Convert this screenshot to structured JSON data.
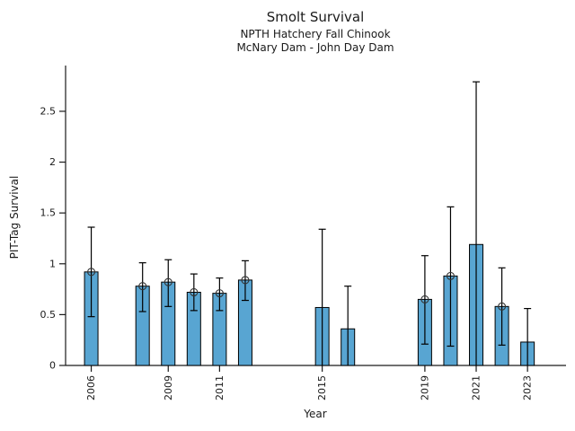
{
  "chart_data": {
    "type": "bar",
    "title": "Smolt Survival",
    "subtitle": [
      "NPTH Hatchery Fall Chinook",
      "McNary Dam - John Day Dam"
    ],
    "xlabel": "Year",
    "ylabel": "PIT-Tag Survival",
    "x": [
      2006,
      2008,
      2009,
      2010,
      2011,
      2012,
      2015,
      2016,
      2019,
      2020,
      2021,
      2022,
      2023
    ],
    "values": [
      0.92,
      0.78,
      0.82,
      0.72,
      0.71,
      0.84,
      0.57,
      0.36,
      0.65,
      0.88,
      1.19,
      0.58,
      0.23
    ],
    "error_low": [
      0.48,
      0.53,
      0.58,
      0.54,
      0.54,
      0.64,
      0,
      0,
      0.21,
      0.19,
      0,
      0.2,
      0
    ],
    "error_high": [
      1.36,
      1.01,
      1.04,
      0.9,
      0.86,
      1.03,
      1.34,
      0.78,
      1.08,
      1.56,
      2.79,
      0.96,
      0.56
    ],
    "point_marker": [
      true,
      true,
      true,
      true,
      true,
      true,
      false,
      false,
      true,
      true,
      false,
      true,
      false
    ],
    "xticks": {
      "values": [
        2006,
        2009,
        2011,
        2015,
        2019,
        2021,
        2023
      ],
      "labels": [
        "2006",
        "2009",
        "2011",
        "2015",
        "2019",
        "2021",
        "2023"
      ]
    },
    "yticks": {
      "values": [
        0,
        0.5,
        1,
        1.5,
        2,
        2.5
      ],
      "labels": [
        "0",
        "0.5",
        "1",
        "1.5",
        "2",
        "2.5"
      ]
    },
    "xlim": [
      2005,
      2024.5
    ],
    "ylim": [
      0,
      2.95
    ],
    "grid": false,
    "legend": null,
    "colors": {
      "bar_fill": "#58a5d2",
      "bar_edge": "#000000",
      "error": "#000000",
      "marker_edge": "#333333",
      "text": "#1a1a1a"
    }
  }
}
